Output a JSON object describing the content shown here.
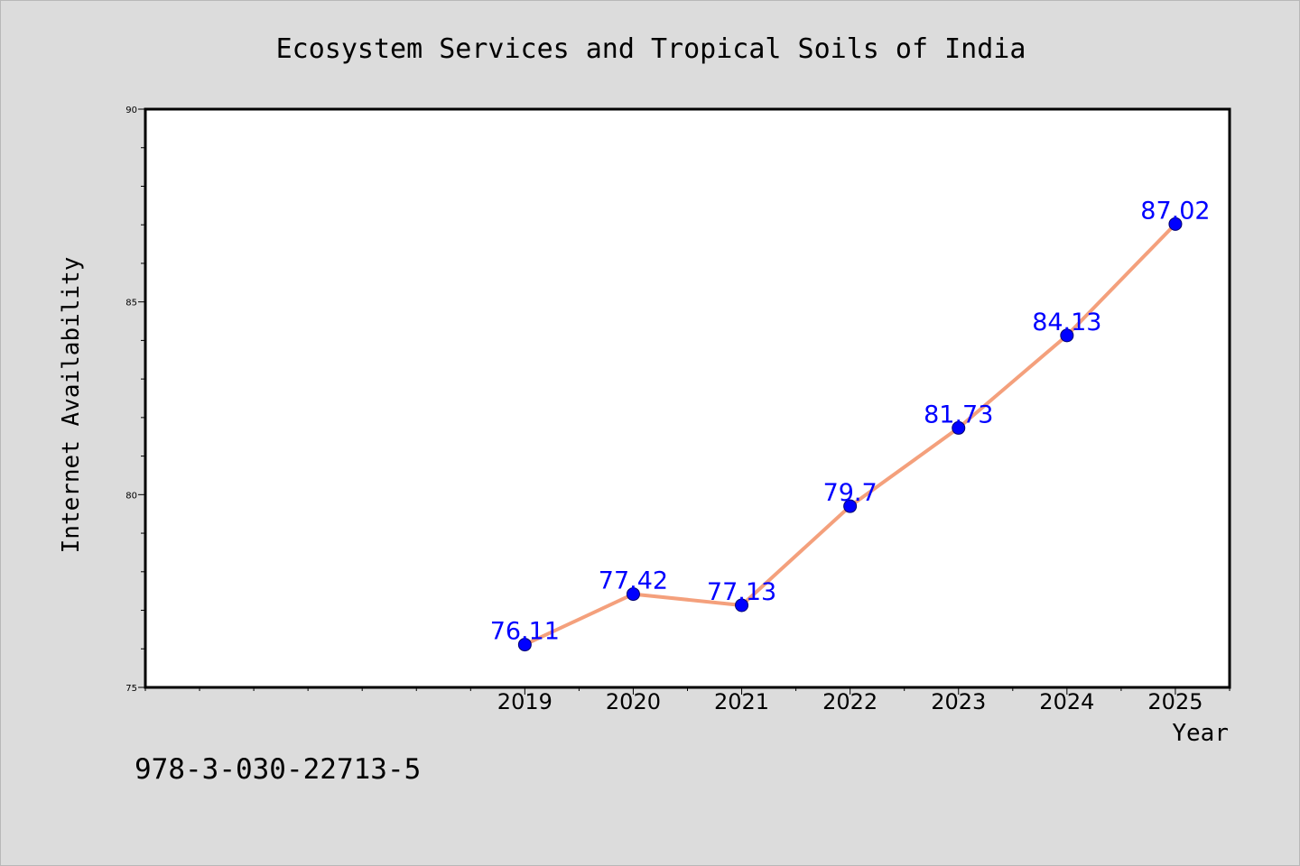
{
  "isbn": "978-3-030-22713-5",
  "chart_data": {
    "type": "line",
    "title": "Ecosystem Services and Tropical Soils of India",
    "xlabel": "Year",
    "ylabel": "Internet Availability",
    "x": [
      2019,
      2020,
      2021,
      2022,
      2023,
      2024,
      2025
    ],
    "values": [
      76.11,
      77.42,
      77.13,
      79.7,
      81.73,
      84.13,
      87.02
    ],
    "data_labels": [
      "76.11",
      "77.42",
      "77.13",
      "79.7",
      "81.73",
      "84.13",
      "87.02"
    ],
    "xticks": [
      "2019",
      "2020",
      "2021",
      "2022",
      "2023",
      "2024",
      "2025"
    ],
    "yticks": [
      "75",
      "80",
      "85",
      "90"
    ],
    "xlim": [
      2015.5,
      2025.5
    ],
    "ylim": [
      75,
      90
    ],
    "grid": false,
    "legend": "none",
    "line_color": "#f4a07c",
    "marker_color": "#0000ff",
    "label_color": "#0000ff",
    "background": "#dcdcdc",
    "plot_background": "#ffffff"
  }
}
